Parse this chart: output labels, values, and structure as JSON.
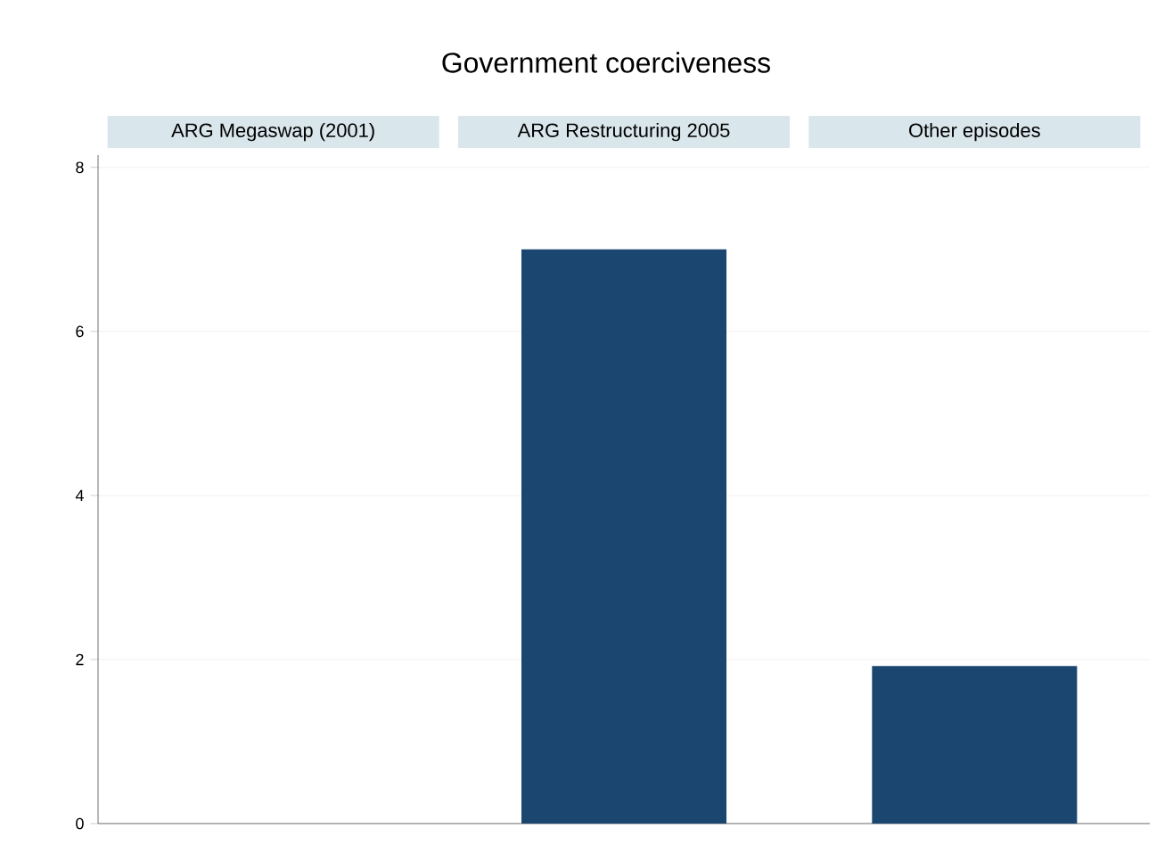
{
  "chart_data": {
    "type": "bar",
    "title": "Government coerciveness",
    "categories": [
      "ARG Megaswap (2001)",
      "ARG Restructuring 2005",
      "Other episodes"
    ],
    "values": [
      0,
      7,
      1.92
    ],
    "color": "#1a4670",
    "ylim": [
      0,
      8.15
    ],
    "yticks": [
      0,
      2,
      4,
      6,
      8
    ],
    "grid": "y"
  }
}
